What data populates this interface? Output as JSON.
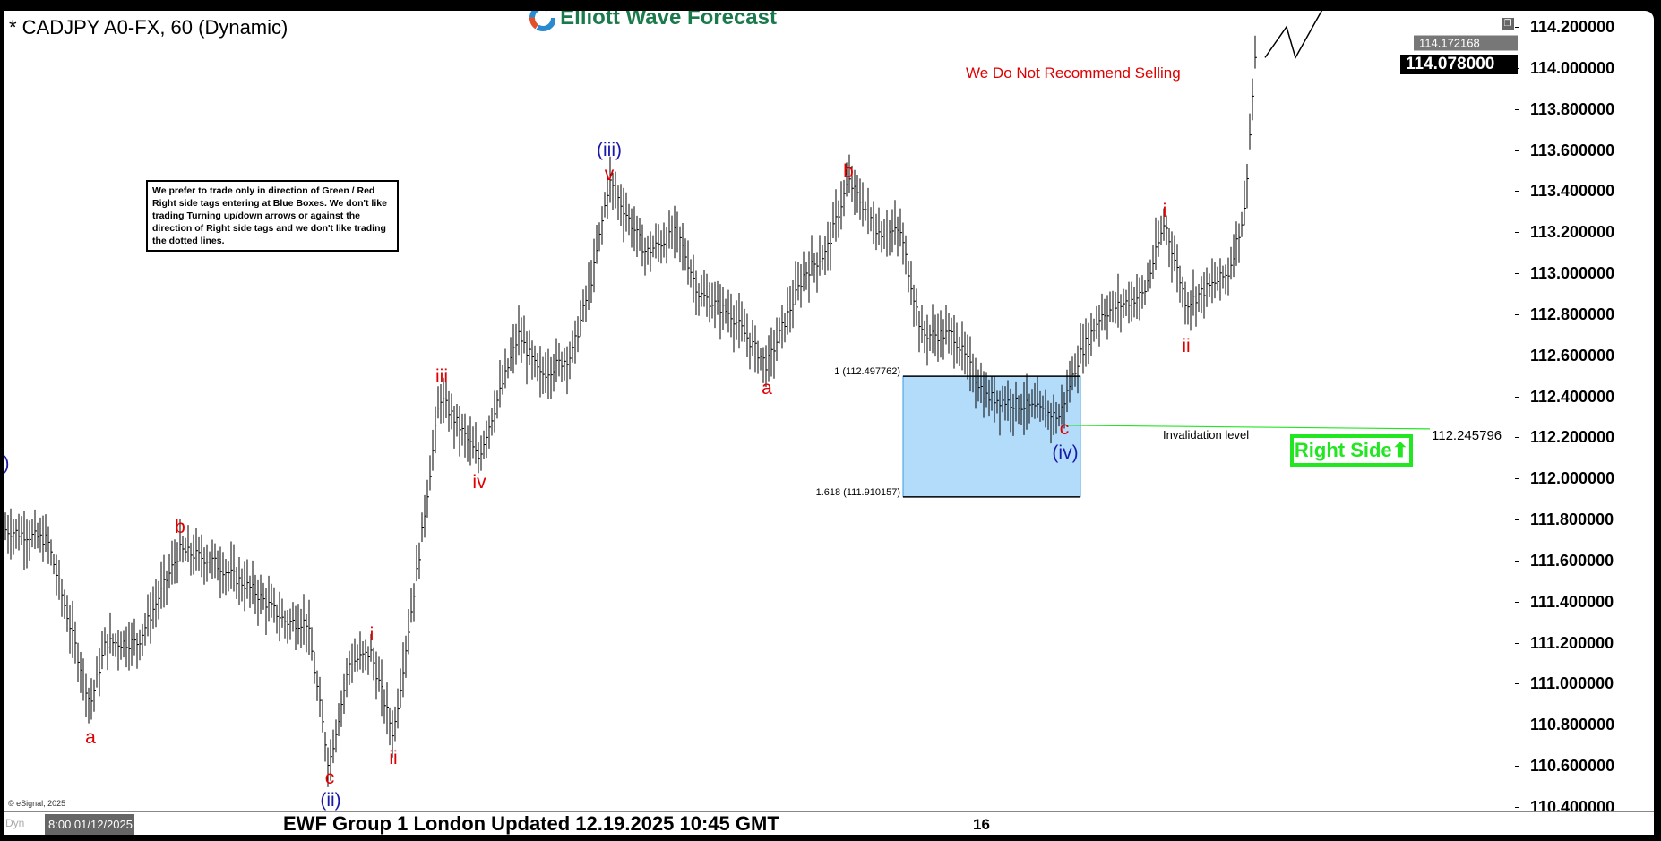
{
  "header": {
    "title": "* CADJPY A0-FX, 60 (Dynamic)",
    "logo_text": "Elliott Wave Forecast"
  },
  "note": "We prefer to trade only in direction of Green / Red Right side tags entering at Blue Boxes. We don't like trading Turning up/down arrows or against the direction of Right side tags and we don't like trading the dotted lines.",
  "no_sell": "We Do Not Recommend Selling",
  "fib": {
    "level1": "1 (112.497762)",
    "level2": "1.618 (111.910157)"
  },
  "invalidation": {
    "label": "Invalidation level",
    "price": "112.245796"
  },
  "right_side": "Right Side",
  "price_tags": {
    "high": "114.172168",
    "last": "114.078000"
  },
  "footer": {
    "esignal": "© eSignal, 2025",
    "dyn": "Dyn",
    "date": "8:00 01/12/2025",
    "title": "EWF Group 1 London Updated 12.19.2025 10:45 GMT",
    "x_label": "16"
  },
  "colors": {
    "red_label": "#e00000",
    "blue_label": "#1a1aa8",
    "box": "#b3dcfb",
    "box_border": "#3a9ae0",
    "green": "#22e622"
  },
  "chart_data": {
    "type": "ohlc",
    "symbol": "CADJPY",
    "interval": "60",
    "ylim": [
      110.4,
      114.2
    ],
    "y_ticks": [
      "114.200000",
      "114.000000",
      "113.800000",
      "113.600000",
      "113.400000",
      "113.200000",
      "113.000000",
      "112.800000",
      "112.600000",
      "112.400000",
      "112.200000",
      "112.000000",
      "111.800000",
      "111.600000",
      "111.400000",
      "111.200000",
      "111.000000",
      "110.800000",
      "110.600000",
      "110.400000"
    ],
    "grid": false,
    "price_path": [
      111.75,
      111.7,
      110.9,
      111.2,
      111.2,
      111.65,
      111.6,
      111.45,
      111.3,
      111.3,
      110.6,
      111.1,
      111.15,
      110.75,
      111.6,
      112.4,
      112.2,
      112.1,
      112.7,
      112.5,
      112.6,
      113.0,
      113.45,
      113.1,
      113.2,
      112.9,
      112.8,
      112.55,
      113.0,
      113.1,
      113.45,
      113.2,
      113.2,
      112.7,
      112.7,
      112.4,
      112.35,
      112.3,
      112.6,
      112.8,
      112.9,
      113.25,
      112.85,
      113.0,
      113.3,
      114.05
    ],
    "projection": [
      114.05,
      114.2,
      114.05,
      114.3
    ],
    "blue_box": [
      111.910157,
      112.497762
    ],
    "invalidation": 112.245796,
    "wave_labels": [
      {
        "text": "a",
        "color": "red"
      },
      {
        "text": "b",
        "color": "red"
      },
      {
        "text": "c",
        "color": "red"
      },
      {
        "text": "(ii)",
        "color": "blue"
      },
      {
        "text": "i",
        "color": "red"
      },
      {
        "text": "ii",
        "color": "red"
      },
      {
        "text": "iii",
        "color": "red"
      },
      {
        "text": "iv",
        "color": "red"
      },
      {
        "text": "(iii)",
        "color": "blue"
      },
      {
        "text": "v",
        "color": "red"
      },
      {
        "text": "a",
        "color": "red"
      },
      {
        "text": "b",
        "color": "red"
      },
      {
        "text": "c",
        "color": "red"
      },
      {
        "text": "(iv)",
        "color": "blue"
      },
      {
        "text": "i",
        "color": "red"
      },
      {
        "text": "ii",
        "color": "red"
      },
      {
        "text": ")",
        "color": "blue"
      }
    ]
  }
}
